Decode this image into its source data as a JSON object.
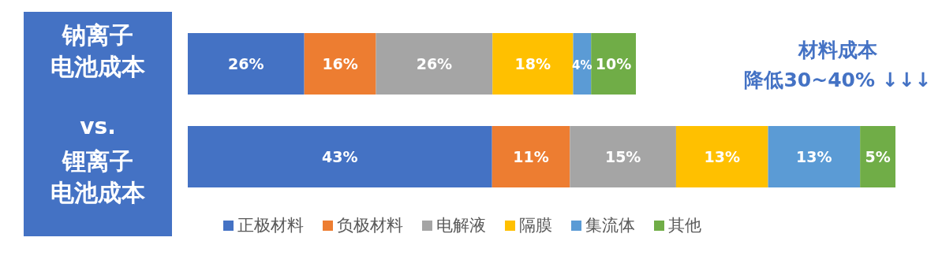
{
  "chart_data": [
    {
      "type": "bar",
      "orientation": "horizontal",
      "stacked": true,
      "categories": [
        "钠离子电池成本"
      ],
      "series": [
        {
          "color": "#4472c4",
          "values": [
            26
          ],
          "value_labels": [
            "26%"
          ]
        },
        {
          "color": "#ed7d31",
          "values": [
            16
          ],
          "value_labels": [
            "16%"
          ]
        },
        {
          "color": "#a5a5a5",
          "values": [
            26
          ],
          "value_labels": [
            "26%"
          ]
        },
        {
          "color": "#ffc000",
          "values": [
            18
          ],
          "value_labels": [
            "18%"
          ]
        },
        {
          "color": "#5b9bd5",
          "values": [
            4
          ],
          "value_labels": [
            "4%"
          ]
        },
        {
          "color": "#70ad47",
          "values": [
            10
          ],
          "value_labels": [
            "10%"
          ]
        }
      ],
      "annotations": [
        "vs.",
        "材料成本",
        "降低30~40% ↓↓↓"
      ]
    },
    {
      "type": "bar",
      "orientation": "horizontal",
      "stacked": true,
      "categories": [
        "锂离子电池成本"
      ],
      "legend": "bottom",
      "series": [
        {
          "name": "正极材料",
          "color": "#4472c4",
          "values": [
            43
          ],
          "value_labels": [
            "43%"
          ]
        },
        {
          "name": "负极材料",
          "color": "#ed7d31",
          "values": [
            11
          ],
          "value_labels": [
            "11%"
          ]
        },
        {
          "name": "电解液",
          "color": "#a5a5a5",
          "values": [
            15
          ],
          "value_labels": [
            "15%"
          ]
        },
        {
          "name": "隔膜",
          "color": "#ffc000",
          "values": [
            13
          ],
          "value_labels": [
            "13%"
          ]
        },
        {
          "name": "集流体",
          "color": "#5b9bd5",
          "values": [
            13
          ],
          "value_labels": [
            "13%"
          ]
        },
        {
          "name": "其他",
          "color": "#70ad47",
          "values": [
            5
          ],
          "value_labels": [
            "5%"
          ]
        }
      ]
    }
  ]
}
